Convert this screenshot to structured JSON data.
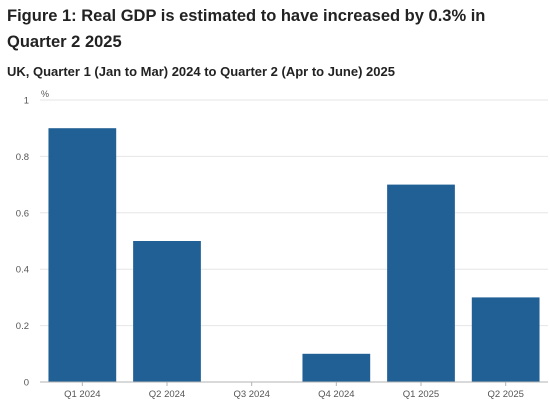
{
  "title": "Figure 1: Real GDP is estimated to have increased by 0.3% in Quarter 2 2025",
  "subtitle": "UK, Quarter 1 (Jan to Mar) 2024 to Quarter 2 (Apr to June) 2025",
  "chart_data": {
    "type": "bar",
    "title": "Figure 1: Real GDP is estimated to have increased by 0.3% in Quarter 2 2025",
    "subtitle": "UK, Quarter 1 (Jan to Mar) 2024 to Quarter 2 (Apr to June) 2025",
    "ylabel": "%",
    "xlabel": "",
    "categories": [
      "Q1 2024",
      "Q2 2024",
      "Q3 2024",
      "Q4 2024",
      "Q1 2025",
      "Q2 2025"
    ],
    "values": [
      0.9,
      0.5,
      0.0,
      0.1,
      0.7,
      0.3
    ],
    "ylim": [
      0,
      1
    ],
    "yticks": [
      0,
      0.2,
      0.4,
      0.6,
      0.8,
      1
    ],
    "ytick_labels": [
      "0",
      "0.2",
      "0.4",
      "0.6",
      "0.8",
      "1"
    ],
    "grid": true,
    "legend": "none",
    "bar_color": "#206095",
    "grid_color": "#e6e6e6",
    "axis_color": "#b3b3b3"
  }
}
